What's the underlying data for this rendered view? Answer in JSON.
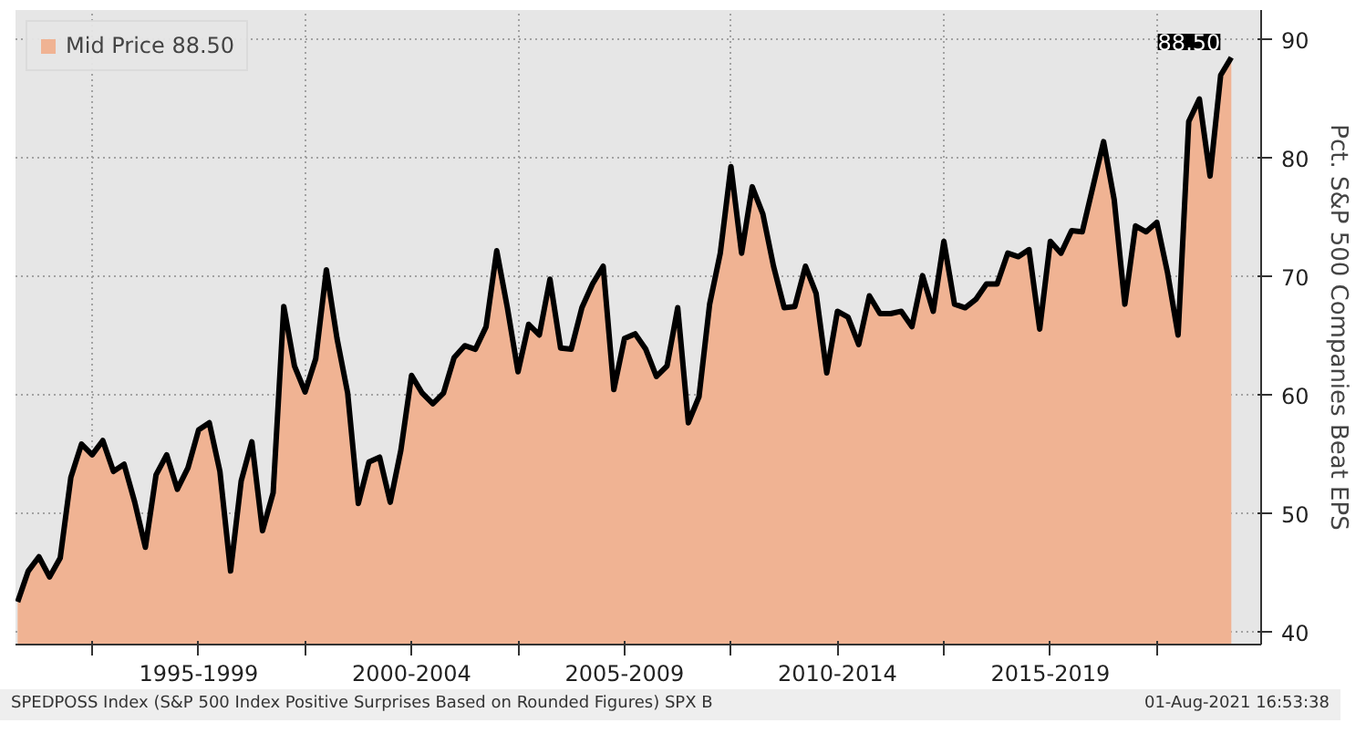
{
  "chart_data": {
    "type": "area",
    "ylabel": "Pct. S&P 500 Companies Beat EPS",
    "ylim": [
      39,
      92.5
    ],
    "yticks": [
      40,
      50,
      60,
      70,
      80,
      90
    ],
    "grid": true,
    "legend": "top left",
    "categories": [
      null,
      null,
      null,
      null,
      null,
      null,
      null,
      null,
      null,
      null,
      null,
      null,
      null,
      null,
      null,
      null,
      null,
      "1995-1999",
      null,
      null,
      null,
      null,
      null,
      null,
      null,
      null,
      null,
      null,
      null,
      null,
      null,
      null,
      null,
      null,
      null,
      null,
      null,
      "2000-2004",
      null,
      null,
      null,
      null,
      null,
      null,
      null,
      null,
      null,
      null,
      null,
      null,
      null,
      null,
      null,
      null,
      null,
      null,
      null,
      "2005-2009",
      null,
      null,
      null,
      null,
      null,
      null,
      null,
      null,
      null,
      null,
      null,
      null,
      null,
      null,
      null,
      null,
      null,
      null,
      null,
      "2010-2014",
      null,
      null,
      null,
      null,
      null,
      null,
      null,
      null,
      null,
      null,
      null,
      null,
      null,
      null,
      null,
      null,
      null,
      null,
      null,
      "2015-2019",
      null,
      null,
      null,
      null,
      null,
      null,
      null,
      null,
      null,
      null,
      null,
      null,
      null,
      null,
      null,
      null,
      null
    ],
    "series": [
      {
        "name": "Mid Price 88.50",
        "color": "#f0b393",
        "values": [
          42.6,
          45.2,
          46.4,
          44.7,
          46.3,
          53.1,
          55.9,
          55.0,
          56.2,
          53.6,
          54.2,
          51.0,
          47.2,
          53.3,
          55.0,
          52.1,
          53.9,
          57.1,
          57.7,
          53.6,
          45.2,
          52.8,
          56.1,
          48.6,
          51.8,
          67.5,
          62.5,
          60.3,
          63.1,
          70.6,
          64.8,
          60.2,
          50.9,
          54.4,
          54.8,
          51.0,
          55.4,
          61.7,
          60.2,
          59.3,
          60.2,
          63.2,
          64.2,
          63.9,
          65.8,
          72.2,
          67.4,
          62.0,
          66.0,
          65.1,
          69.8,
          64.0,
          63.9,
          67.4,
          69.4,
          70.9,
          60.5,
          64.8,
          65.2,
          63.9,
          61.6,
          62.5,
          67.4,
          57.7,
          59.9,
          67.7,
          72.0,
          79.3,
          72.0,
          77.6,
          75.3,
          70.9,
          67.4,
          67.5,
          70.9,
          68.6,
          61.9,
          67.1,
          66.6,
          64.3,
          68.4,
          66.9,
          66.9,
          67.1,
          65.8,
          70.1,
          67.1,
          73.0,
          67.7,
          67.4,
          68.1,
          69.4,
          69.4,
          72.0,
          71.7,
          72.3,
          65.6,
          73.0,
          72.0,
          73.9,
          73.8,
          77.6,
          81.4,
          76.5,
          67.7,
          74.3,
          73.8,
          74.6,
          70.4,
          65.1,
          83.1,
          85.0,
          78.5,
          87.0,
          88.5
        ]
      }
    ],
    "annotations": [
      "88.50",
      "SPEDPOSS Index (S&P 500 Index Positive Surprises Based on Rounded Figures) SPX B",
      "01-Aug-2021 16:53:38"
    ]
  }
}
